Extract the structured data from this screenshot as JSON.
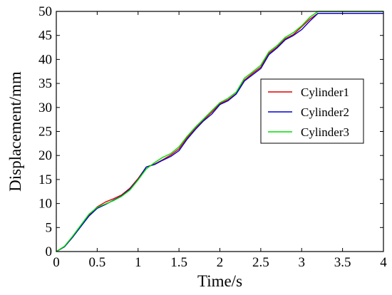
{
  "chart_data": {
    "type": "line",
    "title": "",
    "xlabel": "Time/s",
    "ylabel": "Displacement/mm",
    "xlim": [
      0,
      4
    ],
    "ylim": [
      0,
      50
    ],
    "xticks": [
      "0",
      "0.5",
      "1",
      "1.5",
      "2",
      "2.5",
      "3",
      "3.5",
      "4"
    ],
    "yticks": [
      "0",
      "5",
      "10",
      "15",
      "20",
      "25",
      "30",
      "35",
      "40",
      "45",
      "50"
    ],
    "grid": false,
    "legend_position": "right",
    "series": [
      {
        "name": "Cylinder1",
        "color": "#e00000",
        "x": [
          0,
          0.1,
          0.2,
          0.3,
          0.4,
          0.5,
          0.6,
          0.7,
          0.8,
          0.9,
          1.0,
          1.1,
          1.2,
          1.3,
          1.4,
          1.5,
          1.6,
          1.7,
          1.8,
          1.9,
          2.0,
          2.1,
          2.2,
          2.3,
          2.4,
          2.5,
          2.6,
          2.7,
          2.8,
          2.9,
          3.0,
          3.1,
          3.2,
          3.3,
          3.5,
          4.0
        ],
        "y": [
          0,
          1.0,
          3.0,
          5.3,
          7.6,
          9.3,
          10.3,
          11.0,
          11.8,
          13.2,
          15.2,
          17.6,
          18.2,
          19.1,
          20.1,
          21.4,
          23.7,
          25.7,
          27.4,
          29.0,
          30.8,
          31.6,
          32.9,
          35.7,
          37.1,
          38.4,
          41.3,
          42.6,
          44.3,
          45.2,
          46.8,
          48.4,
          49.6,
          49.6,
          49.6,
          49.6
        ]
      },
      {
        "name": "Cylinder2",
        "color": "#0000d0",
        "x": [
          0,
          0.1,
          0.2,
          0.3,
          0.4,
          0.5,
          0.6,
          0.7,
          0.8,
          0.9,
          1.0,
          1.1,
          1.2,
          1.3,
          1.4,
          1.5,
          1.6,
          1.7,
          1.8,
          1.9,
          2.0,
          2.1,
          2.2,
          2.3,
          2.4,
          2.5,
          2.6,
          2.7,
          2.8,
          2.9,
          3.0,
          3.1,
          3.2,
          3.3,
          3.5,
          4.0
        ],
        "y": [
          0,
          1.0,
          3.0,
          5.2,
          7.4,
          9.0,
          9.8,
          10.7,
          11.6,
          13.0,
          15.0,
          17.6,
          18.1,
          19.0,
          19.8,
          21.0,
          23.4,
          25.4,
          27.2,
          28.6,
          30.6,
          31.4,
          32.8,
          35.5,
          36.8,
          38.1,
          41.0,
          42.4,
          44.1,
          45.0,
          46.2,
          48.0,
          49.6,
          49.6,
          49.6,
          49.6
        ]
      },
      {
        "name": "Cylinder3",
        "color": "#00dd00",
        "x": [
          0,
          0.1,
          0.2,
          0.3,
          0.4,
          0.5,
          0.6,
          0.7,
          0.8,
          0.9,
          1.0,
          1.1,
          1.2,
          1.3,
          1.4,
          1.5,
          1.6,
          1.7,
          1.8,
          1.9,
          2.0,
          2.1,
          2.2,
          2.3,
          2.4,
          2.5,
          2.6,
          2.7,
          2.8,
          2.9,
          3.0,
          3.1,
          3.2,
          3.3,
          3.5,
          4.0
        ],
        "y": [
          0,
          1.1,
          3.2,
          5.5,
          7.8,
          9.2,
          9.9,
          10.6,
          11.5,
          12.8,
          14.9,
          17.2,
          18.5,
          19.6,
          20.4,
          21.8,
          24.0,
          25.9,
          27.6,
          29.3,
          31.0,
          31.9,
          33.2,
          36.1,
          37.4,
          38.8,
          41.6,
          42.9,
          44.6,
          45.6,
          47.0,
          48.8,
          50.0,
          50.0,
          50.0,
          50.0
        ]
      }
    ]
  }
}
